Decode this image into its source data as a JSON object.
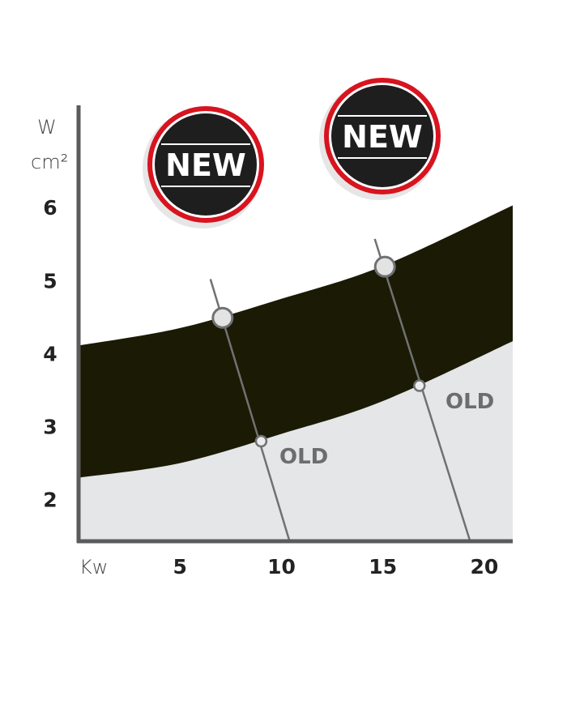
{
  "chart_data": {
    "type": "area",
    "title": "",
    "xlabel": "Kw",
    "ylabel": "W/cm²",
    "ylabel_top": "W",
    "ylabel_bottom": "cm²",
    "xlim": [
      0,
      21.4
    ],
    "ylim": [
      1.43,
      7.4
    ],
    "x_ticks": [
      5,
      10,
      15,
      20
    ],
    "y_ticks": [
      2,
      3,
      4,
      5,
      6
    ],
    "grid": false,
    "colors": {
      "band": "#1b1a05",
      "lower_area": "#e5e6e8",
      "axis": "#5a5b5c",
      "line": "#707172",
      "badge_ring": "#d7141f",
      "badge_fill": "#1e1e1e",
      "label": "#6b6d6e"
    },
    "new_band": {
      "upper": [
        [
          0,
          4.11
        ],
        [
          5,
          4.35
        ],
        [
          10,
          4.75
        ],
        [
          15,
          5.2
        ],
        [
          21.4,
          6.03
        ]
      ],
      "lower": [
        [
          0,
          2.3
        ],
        [
          5,
          2.5
        ],
        [
          10,
          2.9
        ],
        [
          15,
          3.35
        ],
        [
          21.4,
          4.17
        ]
      ]
    },
    "lines": [
      {
        "from": [
          6.5,
          5.02
        ],
        "to": [
          10.4,
          1.43
        ],
        "new_point": [
          7.1,
          4.49
        ],
        "old_point": [
          9.0,
          2.8
        ]
      },
      {
        "from": [
          14.6,
          5.57
        ],
        "to": [
          19.3,
          1.43
        ],
        "new_point": [
          15.1,
          5.19
        ],
        "old_point": [
          16.8,
          3.56
        ]
      }
    ],
    "annotations": {
      "new_label": "NEW",
      "old_label": "OLD"
    }
  }
}
